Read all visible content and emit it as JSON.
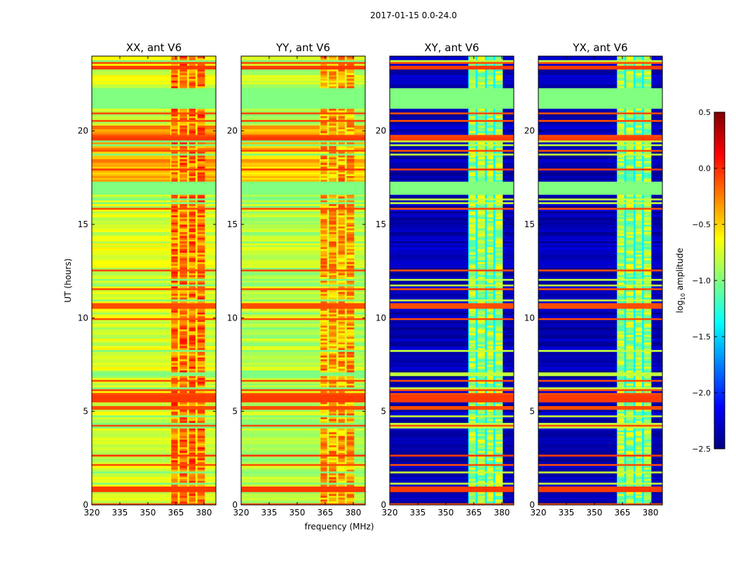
{
  "chart_data": {
    "type": "heatmap",
    "suptitle": "2017-01-15 0.0-24.0",
    "xlabel": "frequency (MHz)",
    "ylabel": "UT (hours)",
    "xlim": [
      320,
      386.4
    ],
    "ylim": [
      0,
      24
    ],
    "xticks": [
      "320",
      "335",
      "350",
      "365",
      "380"
    ],
    "xtick_values": [
      320,
      335,
      350,
      365,
      380
    ],
    "yticks": [
      "0",
      "5",
      "10",
      "15",
      "20"
    ],
    "ytick_values": [
      0,
      5,
      10,
      15,
      20
    ],
    "colorbar": {
      "label": "log10 amplitude",
      "label_main": "log",
      "label_sub": "10",
      "label_rest": " amplitude",
      "range": [
        -2.5,
        0.5
      ],
      "ticks": [
        "0.5",
        "0.0",
        "−0.5",
        "−1.0",
        "−1.5",
        "−2.0",
        "−2.5"
      ],
      "tick_values": [
        0.5,
        0.0,
        -0.5,
        -1.0,
        -1.5,
        -2.0,
        -2.5
      ],
      "colormap": "jet"
    },
    "rfi_band_mhz": [
      362,
      382
    ],
    "rfi_columns_mhz": [
      [
        362.5,
        366
      ],
      [
        367,
        371
      ],
      [
        372,
        375.5
      ],
      [
        376.5,
        380.5
      ]
    ],
    "flagged_hours": [
      [
        21.2,
        22.3
      ],
      [
        16.6,
        17.3
      ]
    ],
    "flag_value": -1.0,
    "saturated_hours": [
      [
        5.5,
        5.9
      ],
      [
        0.7,
        0.95
      ],
      [
        2.55,
        2.7
      ],
      [
        23.3,
        23.45
      ],
      [
        19.5,
        19.7
      ],
      [
        17.9,
        18.0
      ]
    ],
    "panels": [
      {
        "title": "XX, ant V6",
        "base_level": -0.75,
        "rfi_level": -0.2,
        "show_ylabel": true,
        "show_xlabel": false
      },
      {
        "title": "YY, ant V6",
        "base_level": -0.85,
        "rfi_level": -0.35,
        "show_ylabel": false,
        "show_xlabel": true
      },
      {
        "title": "XY, ant V6",
        "base_level": -2.35,
        "rfi_level": -0.9,
        "show_ylabel": false,
        "show_xlabel": false
      },
      {
        "title": "YX, ant V6",
        "base_level": -2.35,
        "rfi_level": -0.9,
        "show_ylabel": false,
        "show_xlabel": false
      }
    ]
  }
}
